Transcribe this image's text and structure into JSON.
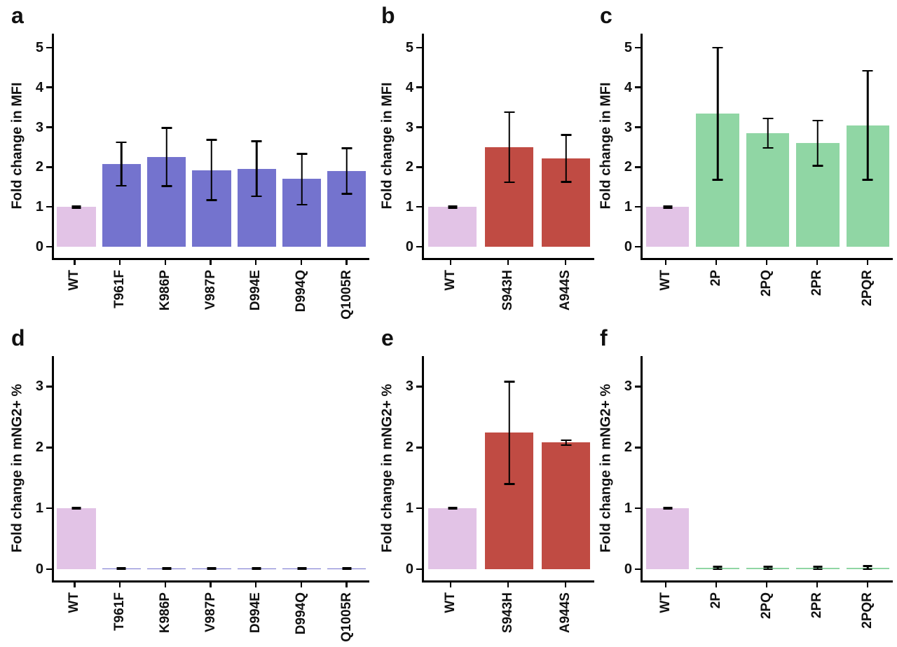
{
  "figure": {
    "background": "#ffffff"
  },
  "colors": {
    "plum": "#e2c3e6",
    "violet": "#7473ce",
    "brick": "#c04b43",
    "green": "#90d6a4",
    "error_bar": "#000000",
    "axis": "#000000",
    "text": "#111111"
  },
  "chart_data": [
    {
      "panel": "a",
      "type": "bar",
      "title": "",
      "xlabel": "",
      "ylabel": "Fold change in MFI",
      "ylim": [
        0,
        5.35
      ],
      "yticks": [
        0,
        1,
        2,
        3,
        4,
        5
      ],
      "grid": false,
      "legend": false,
      "categories": [
        "WT",
        "T961F",
        "K986P",
        "V987P",
        "D994E",
        "D994Q",
        "Q1005R"
      ],
      "values": [
        1.0,
        2.07,
        2.25,
        1.92,
        1.95,
        1.7,
        1.9
      ],
      "err_low": [
        0.98,
        1.53,
        1.52,
        1.17,
        1.27,
        1.06,
        1.33
      ],
      "err_high": [
        1.02,
        2.62,
        2.98,
        2.68,
        2.65,
        2.33,
        2.47
      ],
      "bar_colors": [
        "plum",
        "violet",
        "violet",
        "violet",
        "violet",
        "violet",
        "violet"
      ]
    },
    {
      "panel": "b",
      "type": "bar",
      "title": "",
      "xlabel": "",
      "ylabel": "Fold change in MFI",
      "ylim": [
        0,
        5.35
      ],
      "yticks": [
        0,
        1,
        2,
        3,
        4,
        5
      ],
      "grid": false,
      "legend": false,
      "categories": [
        "WT",
        "S943H",
        "A944S"
      ],
      "values": [
        1.0,
        2.5,
        2.22
      ],
      "err_low": [
        0.98,
        1.62,
        1.63
      ],
      "err_high": [
        1.02,
        3.38,
        2.81
      ],
      "bar_colors": [
        "plum",
        "brick",
        "brick"
      ]
    },
    {
      "panel": "c",
      "type": "bar",
      "title": "",
      "xlabel": "",
      "ylabel": "Fold change in MFI",
      "ylim": [
        0,
        5.35
      ],
      "yticks": [
        0,
        1,
        2,
        3,
        4,
        5
      ],
      "grid": false,
      "legend": false,
      "categories": [
        "WT",
        "2P",
        "2PQ",
        "2PR",
        "2PQR"
      ],
      "values": [
        1.0,
        3.35,
        2.85,
        2.6,
        3.05
      ],
      "err_low": [
        0.98,
        1.68,
        2.48,
        2.03,
        1.68
      ],
      "err_high": [
        1.02,
        5.0,
        3.22,
        3.17,
        4.42
      ],
      "bar_colors": [
        "plum",
        "green",
        "green",
        "green",
        "green"
      ]
    },
    {
      "panel": "d",
      "type": "bar",
      "title": "",
      "xlabel": "",
      "ylabel": "Fold change in mNG2+ %",
      "ylim": [
        0,
        3.5
      ],
      "yticks": [
        0,
        1,
        2,
        3
      ],
      "grid": false,
      "legend": false,
      "categories": [
        "WT",
        "T961F",
        "K986P",
        "V987P",
        "D994E",
        "D994Q",
        "Q1005R"
      ],
      "values": [
        1.0,
        0.01,
        0.01,
        0.01,
        0.01,
        0.01,
        0.01
      ],
      "err_low": [
        0.99,
        0.0,
        0.0,
        0.0,
        0.0,
        0.0,
        0.0
      ],
      "err_high": [
        1.01,
        0.02,
        0.02,
        0.02,
        0.02,
        0.02,
        0.02
      ],
      "bar_colors": [
        "plum",
        "violet",
        "violet",
        "violet",
        "violet",
        "violet",
        "violet"
      ]
    },
    {
      "panel": "e",
      "type": "bar",
      "title": "",
      "xlabel": "",
      "ylabel": "Fold change in mNG2+ %",
      "ylim": [
        0,
        3.5
      ],
      "yticks": [
        0,
        1,
        2,
        3
      ],
      "grid": false,
      "legend": false,
      "categories": [
        "WT",
        "S943H",
        "A944S"
      ],
      "values": [
        1.0,
        2.24,
        2.08
      ],
      "err_low": [
        0.99,
        1.4,
        2.04
      ],
      "err_high": [
        1.01,
        3.08,
        2.12
      ],
      "bar_colors": [
        "plum",
        "brick",
        "brick"
      ]
    },
    {
      "panel": "f",
      "type": "bar",
      "title": "",
      "xlabel": "",
      "ylabel": "Fold change in mNG2+ %",
      "ylim": [
        0,
        3.5
      ],
      "yticks": [
        0,
        1,
        2,
        3
      ],
      "grid": false,
      "legend": false,
      "categories": [
        "WT",
        "2P",
        "2PQ",
        "2PR",
        "2PQR"
      ],
      "values": [
        1.0,
        0.02,
        0.02,
        0.02,
        0.02
      ],
      "err_low": [
        0.99,
        0.0,
        0.0,
        0.0,
        0.0
      ],
      "err_high": [
        1.01,
        0.04,
        0.04,
        0.04,
        0.05
      ],
      "bar_colors": [
        "plum",
        "green",
        "green",
        "green",
        "green"
      ]
    }
  ]
}
